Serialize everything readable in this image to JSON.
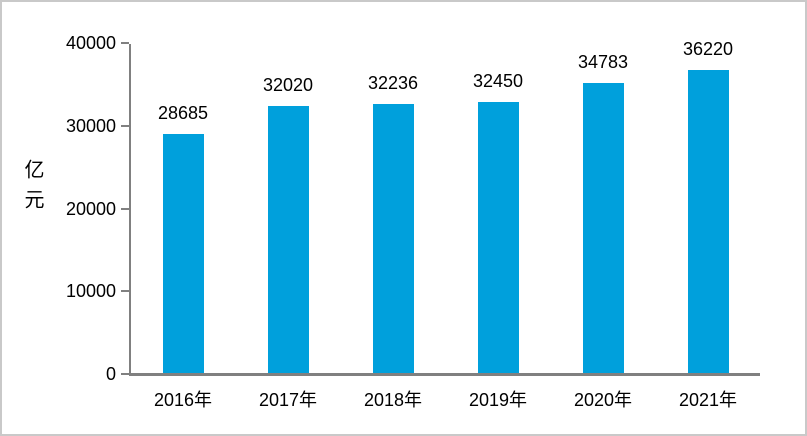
{
  "chart_data": {
    "type": "bar",
    "title": "",
    "xlabel": "",
    "ylabel": "亿元",
    "categories": [
      "2016年",
      "2017年",
      "2018年",
      "2019年",
      "2020年",
      "2021年"
    ],
    "values": [
      28685,
      32020,
      32236,
      32450,
      34783,
      36220
    ],
    "data_labels": [
      "28685",
      "32020",
      "32236",
      "32450",
      "34783",
      "36220"
    ],
    "ylim": [
      0,
      40000
    ],
    "yticks": [
      "0",
      "10000",
      "20000",
      "30000",
      "40000"
    ],
    "ytick_values": [
      0,
      10000,
      20000,
      30000,
      40000
    ],
    "grid": false,
    "legend": "none",
    "bar_color": "#00A0DC",
    "axis_color": "#808080",
    "text_color": "#000000",
    "frame_border_color": "#C9C9C9",
    "background_color": "#FFFFFF"
  }
}
